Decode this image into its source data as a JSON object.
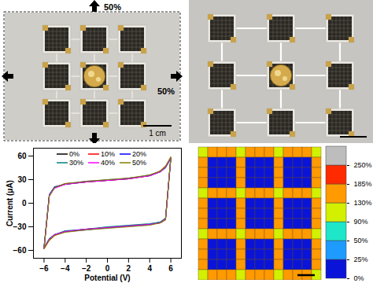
{
  "photos": {
    "unstretched": {
      "arrow_labels": [
        "50%",
        "50%"
      ],
      "scale_bar": "1 cm"
    }
  },
  "chart_data": [
    {
      "type": "line",
      "x_label": "Potential (V)",
      "y_label": "Current (μA)",
      "x": [
        -6,
        -5.5,
        -5,
        -4,
        -2,
        0,
        2,
        4,
        5,
        5.5,
        6,
        5.5,
        5,
        4,
        2,
        0,
        -2,
        -4,
        -5,
        -5.5,
        -6
      ],
      "series": [
        {
          "name": "0%",
          "color": "#000000",
          "values": [
            -57,
            10,
            20,
            24,
            27,
            29,
            31,
            35,
            40,
            46,
            58,
            -20,
            -25,
            -27,
            -29,
            -31,
            -33,
            -36,
            -40,
            -46,
            -57
          ]
        },
        {
          "name": "10%",
          "color": "#ff0000",
          "values": [
            -58,
            9,
            20,
            25,
            27,
            29,
            31,
            35,
            41,
            47,
            58,
            -21,
            -25,
            -27,
            -29,
            -31,
            -33,
            -36,
            -41,
            -47,
            -58
          ]
        },
        {
          "name": "20%",
          "color": "#0000ff",
          "values": [
            -57,
            11,
            21,
            24,
            28,
            29,
            32,
            35,
            40,
            46,
            57,
            -20,
            -24,
            -27,
            -29,
            -31,
            -34,
            -36,
            -40,
            -46,
            -57
          ]
        },
        {
          "name": "30%",
          "color": "#008080",
          "values": [
            -56,
            10,
            20,
            24,
            27,
            30,
            31,
            36,
            40,
            45,
            57,
            -19,
            -24,
            -26,
            -28,
            -30,
            -33,
            -35,
            -40,
            -45,
            -56
          ]
        },
        {
          "name": "40%",
          "color": "#ff00ff",
          "values": [
            -57,
            10,
            19,
            24,
            27,
            29,
            31,
            35,
            40,
            46,
            58,
            -20,
            -25,
            -27,
            -29,
            -31,
            -33,
            -36,
            -40,
            -46,
            -57
          ]
        },
        {
          "name": "50%",
          "color": "#808000",
          "values": [
            -58,
            9,
            20,
            25,
            28,
            30,
            32,
            36,
            41,
            47,
            59,
            -21,
            -25,
            -28,
            -30,
            -32,
            -34,
            -37,
            -41,
            -47,
            -58
          ]
        }
      ],
      "xlim": [
        -7,
        7
      ],
      "xticks": [
        -6,
        -4,
        -2,
        0,
        2,
        4,
        6
      ],
      "ylim": [
        -70,
        70
      ],
      "yticks": [
        -60,
        -30,
        0,
        30,
        60
      ],
      "legend": "top"
    },
    {
      "type": "heatmap",
      "tick_labels": false,
      "cells": [
        [
          90,
          140,
          140,
          140,
          100,
          140,
          140,
          140,
          100,
          140,
          140,
          140,
          90
        ],
        [
          140,
          0,
          0,
          0,
          160,
          0,
          0,
          0,
          160,
          0,
          0,
          0,
          140
        ],
        [
          140,
          0,
          0,
          0,
          160,
          0,
          0,
          0,
          160,
          0,
          0,
          0,
          140
        ],
        [
          140,
          0,
          0,
          0,
          160,
          0,
          0,
          0,
          160,
          0,
          0,
          0,
          140
        ],
        [
          100,
          160,
          160,
          160,
          110,
          160,
          160,
          160,
          110,
          160,
          160,
          160,
          100
        ],
        [
          140,
          0,
          0,
          0,
          160,
          0,
          0,
          0,
          160,
          0,
          0,
          0,
          140
        ],
        [
          140,
          0,
          0,
          0,
          160,
          0,
          0,
          0,
          160,
          0,
          0,
          0,
          140
        ],
        [
          140,
          0,
          0,
          0,
          160,
          0,
          0,
          0,
          160,
          0,
          0,
          0,
          140
        ],
        [
          100,
          160,
          160,
          160,
          110,
          160,
          160,
          160,
          110,
          160,
          160,
          160,
          100
        ],
        [
          140,
          0,
          0,
          0,
          160,
          0,
          0,
          0,
          160,
          0,
          0,
          0,
          140
        ],
        [
          140,
          0,
          0,
          0,
          160,
          0,
          0,
          0,
          160,
          0,
          0,
          0,
          140
        ],
        [
          140,
          0,
          0,
          0,
          160,
          0,
          0,
          0,
          160,
          0,
          0,
          0,
          140
        ],
        [
          90,
          140,
          140,
          140,
          100,
          140,
          140,
          140,
          100,
          140,
          140,
          140,
          90
        ]
      ],
      "colorbar": {
        "ticks": [
          {
            "value": 0,
            "label": "0%"
          },
          {
            "value": 25,
            "label": "25%"
          },
          {
            "value": 50,
            "label": "50%"
          },
          {
            "value": 90,
            "label": "90%"
          },
          {
            "value": 130,
            "label": "130%"
          },
          {
            "value": 185,
            "label": "185%"
          },
          {
            "value": 250,
            "label": "250%"
          }
        ]
      },
      "colors": [
        "#0a14d8",
        "#1e9bff",
        "#1ee6c8",
        "#d2f000",
        "#ff9a00",
        "#ff2a00",
        "#bdbdbd"
      ]
    }
  ]
}
